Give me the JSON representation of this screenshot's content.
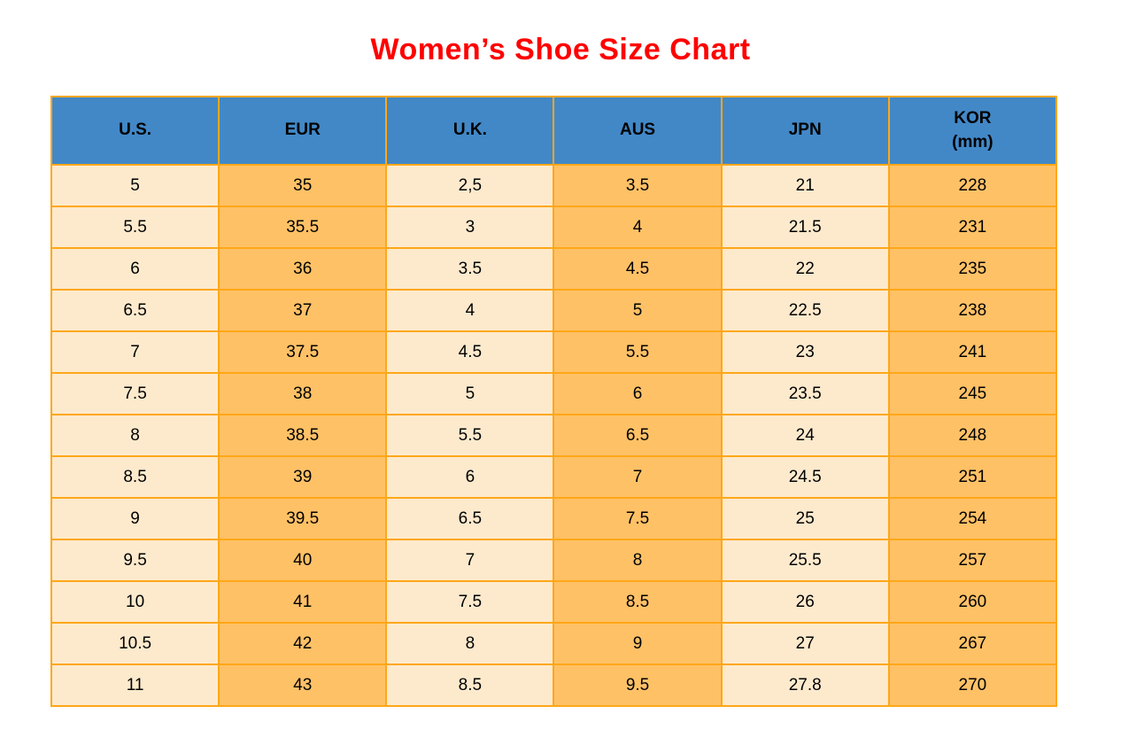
{
  "title": "Women’s Shoe Size Chart",
  "colors": {
    "title_red": "#ff0000",
    "header_blue": "#4288c7",
    "cell_cream": "#fdeacd",
    "cell_orange": "#ffc166",
    "border_orange": "#ffa718",
    "text_black": "#000000"
  },
  "chart_data": {
    "type": "table",
    "title": "Women’s Shoe Size Chart",
    "columns": [
      "U.S.",
      "EUR",
      "U.K.",
      "AUS",
      "JPN",
      "KOR\n(mm)"
    ],
    "column_keys": [
      "us",
      "eur",
      "uk",
      "aus",
      "jpn",
      "kor-mm"
    ],
    "rows": [
      [
        "5",
        "35",
        "2,5",
        "3.5",
        "21",
        "228"
      ],
      [
        "5.5",
        "35.5",
        "3",
        "4",
        "21.5",
        "231"
      ],
      [
        "6",
        "36",
        "3.5",
        "4.5",
        "22",
        "235"
      ],
      [
        "6.5",
        "37",
        "4",
        "5",
        "22.5",
        "238"
      ],
      [
        "7",
        "37.5",
        "4.5",
        "5.5",
        "23",
        "241"
      ],
      [
        "7.5",
        "38",
        "5",
        "6",
        "23.5",
        "245"
      ],
      [
        "8",
        "38.5",
        "5.5",
        "6.5",
        "24",
        "248"
      ],
      [
        "8.5",
        "39",
        "6",
        "7",
        "24.5",
        "251"
      ],
      [
        "9",
        "39.5",
        "6.5",
        "7.5",
        "25",
        "254"
      ],
      [
        "9.5",
        "40",
        "7",
        "8",
        "25.5",
        "257"
      ],
      [
        "10",
        "41",
        "7.5",
        "8.5",
        "26",
        "260"
      ],
      [
        "10.5",
        "42",
        "8",
        "9",
        "27",
        "267"
      ],
      [
        "11",
        "43",
        "8.5",
        "9.5",
        "27.8",
        "270"
      ]
    ],
    "layout_hints": {
      "header_background": "blue",
      "column_fill_pattern": [
        "cream",
        "orange",
        "cream",
        "orange",
        "cream",
        "orange"
      ],
      "grid": "on",
      "grid_color": "orange"
    }
  }
}
